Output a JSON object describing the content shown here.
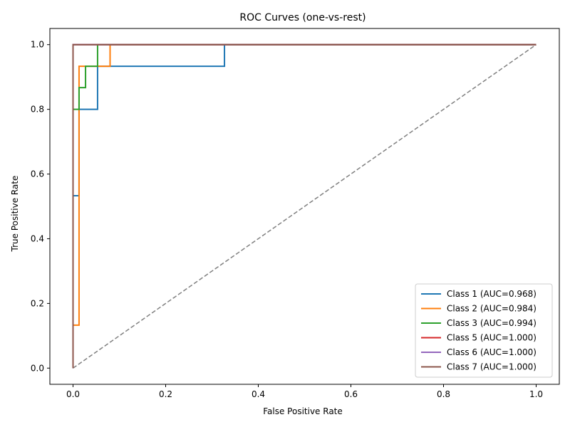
{
  "chart_data": {
    "type": "line",
    "title": "ROC Curves (one-vs-rest)",
    "xlabel": "False Positive Rate",
    "ylabel": "True Positive Rate",
    "xlim": [
      -0.05,
      1.05
    ],
    "ylim": [
      -0.05,
      1.05
    ],
    "xticks": [
      0.0,
      0.2,
      0.4,
      0.6,
      0.8,
      1.0
    ],
    "yticks": [
      0.0,
      0.2,
      0.4,
      0.6,
      0.8,
      1.0
    ],
    "xtick_labels": [
      "0.0",
      "0.2",
      "0.4",
      "0.6",
      "0.8",
      "1.0"
    ],
    "ytick_labels": [
      "0.0",
      "0.2",
      "0.4",
      "0.6",
      "0.8",
      "1.0"
    ],
    "grid": false,
    "legend_position": "lower-right",
    "reference_line": {
      "x": [
        0,
        1
      ],
      "y": [
        0,
        1
      ],
      "style": "dashed",
      "color": "#808080"
    },
    "series": [
      {
        "name": "Class 1 (AUC=0.968)",
        "color": "#1f77b4",
        "x": [
          0,
          0,
          0.013,
          0.013,
          0.053,
          0.053,
          0.327,
          0.327,
          1
        ],
        "y": [
          0,
          0.533,
          0.533,
          0.8,
          0.8,
          0.933,
          0.933,
          1,
          1
        ]
      },
      {
        "name": "Class 2 (AUC=0.984)",
        "color": "#ff7f0e",
        "x": [
          0,
          0,
          0.013,
          0.013,
          0.08,
          0.08,
          1
        ],
        "y": [
          0,
          0.133,
          0.133,
          0.933,
          0.933,
          1,
          1
        ]
      },
      {
        "name": "Class 3 (AUC=0.994)",
        "color": "#2ca02c",
        "x": [
          0,
          0,
          0.013,
          0.013,
          0.027,
          0.027,
          0.053,
          0.053,
          1
        ],
        "y": [
          0,
          0.8,
          0.8,
          0.867,
          0.867,
          0.933,
          0.933,
          1,
          1
        ]
      },
      {
        "name": "Class 5 (AUC=1.000)",
        "color": "#d62728",
        "x": [
          0,
          0,
          1
        ],
        "y": [
          0,
          1,
          1
        ]
      },
      {
        "name": "Class 6 (AUC=1.000)",
        "color": "#9467bd",
        "x": [
          0,
          0,
          1
        ],
        "y": [
          0,
          1,
          1
        ]
      },
      {
        "name": "Class 7 (AUC=1.000)",
        "color": "#8c564b",
        "x": [
          0,
          0,
          1
        ],
        "y": [
          0,
          1,
          1
        ]
      }
    ]
  }
}
